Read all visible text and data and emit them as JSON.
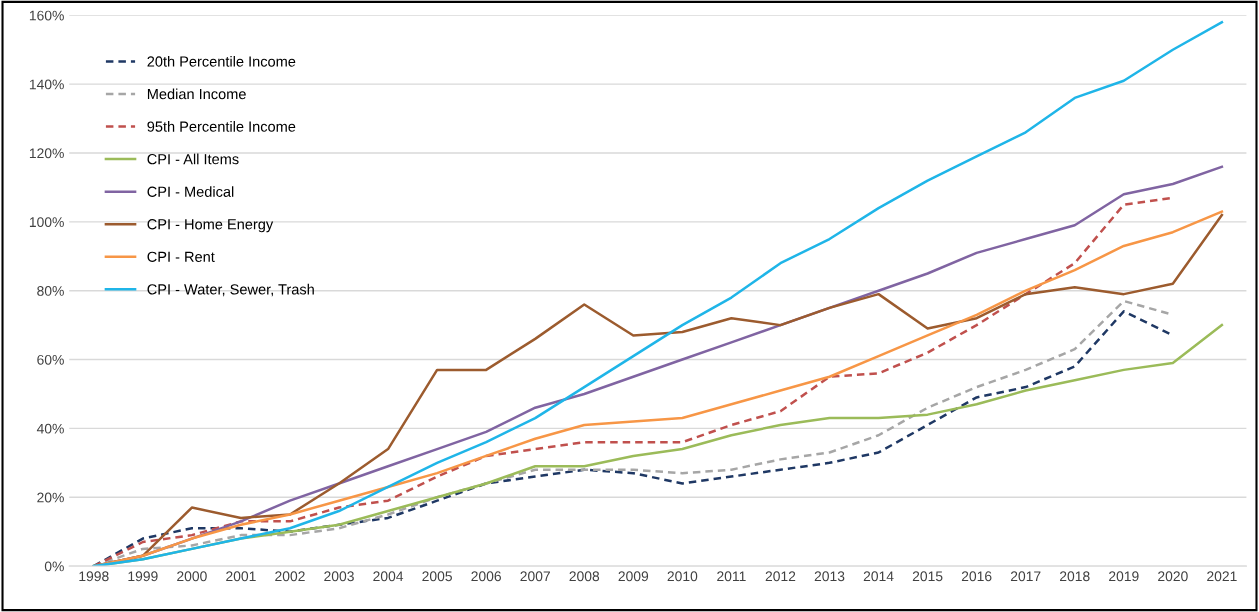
{
  "chart_data": {
    "type": "line",
    "categories": [
      "1998",
      "1999",
      "2000",
      "2001",
      "2002",
      "2003",
      "2004",
      "2005",
      "2006",
      "2007",
      "2008",
      "2009",
      "2010",
      "2011",
      "2012",
      "2013",
      "2014",
      "2015",
      "2016",
      "2017",
      "2018",
      "2019",
      "2020",
      "2021"
    ],
    "series": [
      {
        "name": "20th Percentile Income",
        "color": "#1f3864",
        "line_style": "dashed",
        "values": [
          0,
          8,
          11,
          11,
          10,
          12,
          14,
          19,
          24,
          26,
          28,
          27,
          24,
          26,
          28,
          30,
          33,
          41,
          49,
          52,
          58,
          74,
          67,
          null
        ]
      },
      {
        "name": "Median Income",
        "color": "#a6a6a6",
        "line_style": "dashed",
        "values": [
          0,
          5,
          6,
          9,
          9,
          11,
          15,
          20,
          24,
          28,
          28,
          28,
          27,
          28,
          31,
          33,
          38,
          46,
          52,
          57,
          63,
          77,
          73,
          null
        ]
      },
      {
        "name": "95th Percentile Income",
        "color": "#c0504d",
        "line_style": "dashed",
        "values": [
          0,
          7,
          9,
          13,
          13,
          17,
          19,
          26,
          32,
          34,
          36,
          36,
          36,
          41,
          45,
          55,
          56,
          62,
          70,
          79,
          88,
          105,
          107,
          null
        ]
      },
      {
        "name": "CPI - All Items",
        "color": "#9bbb59",
        "line_style": "solid",
        "values": [
          0,
          2,
          5,
          8,
          10,
          12,
          16,
          20,
          24,
          29,
          29,
          32,
          34,
          38,
          41,
          43,
          43,
          44,
          47,
          51,
          54,
          57,
          59,
          70
        ]
      },
      {
        "name": "CPI - Medical",
        "color": "#8064a2",
        "line_style": "solid",
        "values": [
          0,
          3,
          8,
          13,
          19,
          24,
          29,
          34,
          39,
          46,
          50,
          55,
          60,
          65,
          70,
          75,
          80,
          85,
          91,
          95,
          99,
          108,
          111,
          116
        ]
      },
      {
        "name": "CPI - Home Energy",
        "color": "#9c5b2e",
        "line_style": "solid",
        "values": [
          0,
          3,
          17,
          14,
          15,
          24,
          34,
          57,
          57,
          66,
          76,
          67,
          68,
          72,
          70,
          75,
          79,
          69,
          72,
          79,
          81,
          79,
          82,
          102
        ]
      },
      {
        "name": "CPI - Rent",
        "color": "#f79646",
        "line_style": "solid",
        "values": [
          0,
          3,
          8,
          12,
          15,
          19,
          23,
          27,
          32,
          37,
          41,
          42,
          43,
          47,
          51,
          55,
          61,
          67,
          73,
          80,
          86,
          93,
          97,
          103
        ]
      },
      {
        "name": "CPI - Water, Sewer, Trash",
        "color": "#1fb5e8",
        "line_style": "solid",
        "values": [
          0,
          2,
          5,
          8,
          11,
          16,
          23,
          30,
          36,
          43,
          52,
          61,
          70,
          78,
          88,
          95,
          104,
          112,
          119,
          126,
          136,
          141,
          150,
          158
        ]
      }
    ],
    "ylim": [
      0,
      160
    ],
    "yticks": [
      {
        "value": 0,
        "label": "0%"
      },
      {
        "value": 20,
        "label": "20%"
      },
      {
        "value": 40,
        "label": "40%"
      },
      {
        "value": 60,
        "label": "60%"
      },
      {
        "value": 80,
        "label": "80%"
      },
      {
        "value": 100,
        "label": "100%"
      },
      {
        "value": 120,
        "label": "120%"
      },
      {
        "value": 140,
        "label": "140%"
      },
      {
        "value": 160,
        "label": "160%"
      }
    ],
    "grid": "y",
    "legend": "top left",
    "marker": "none"
  }
}
